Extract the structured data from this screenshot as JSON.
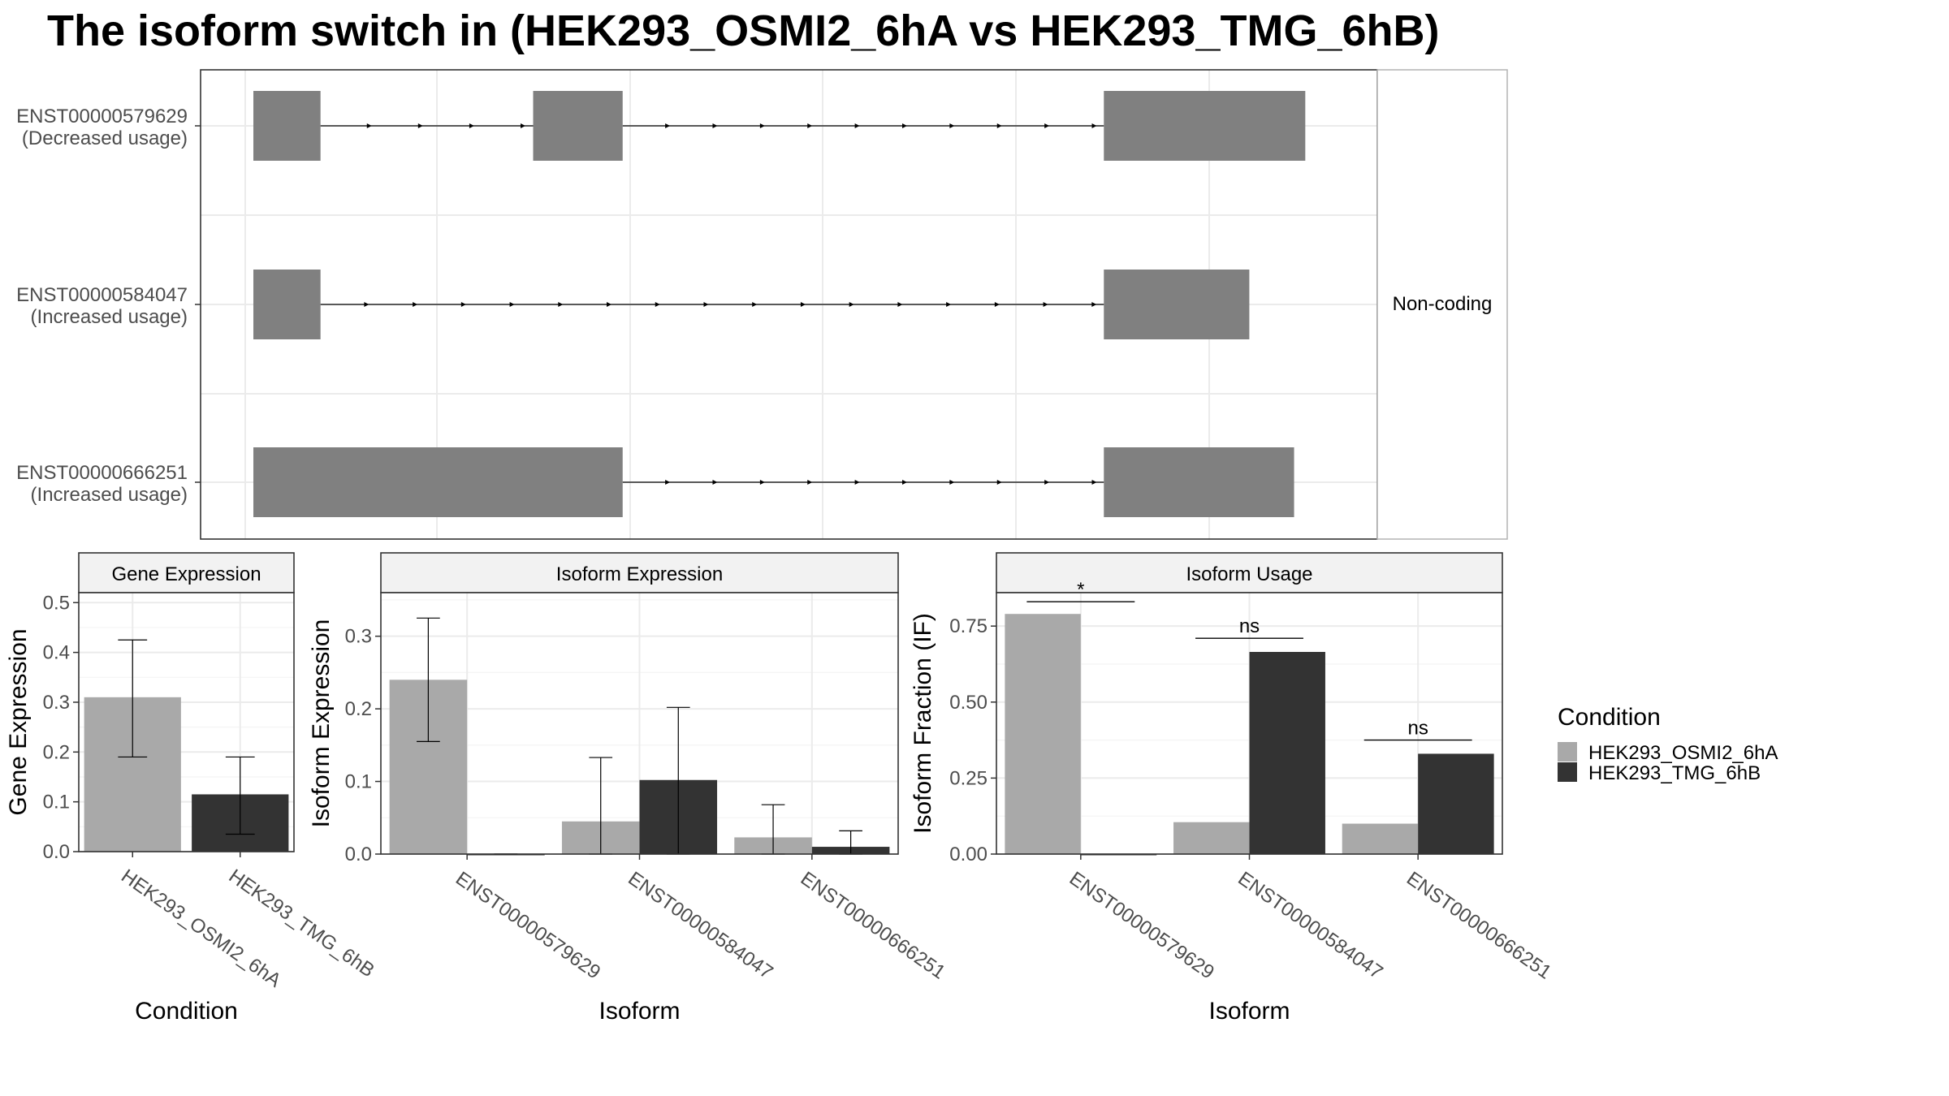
{
  "title": "The isoform switch in  (HEK293_OSMI2_6hA vs HEK293_TMG_6hB)",
  "colors": {
    "condA": "#a9a9a9",
    "condB": "#333333",
    "exon": "#808080"
  },
  "chart_data": [
    {
      "type": "transcript_structure",
      "facet_label": "Non-coding",
      "transcripts": [
        {
          "id": "ENST00000579629",
          "label": "(Decreased usage)",
          "exons": [
            [
              0.0,
              0.06
            ],
            [
              0.25,
              0.33
            ],
            [
              0.76,
              0.94
            ]
          ]
        },
        {
          "id": "ENST00000584047",
          "label": "(Increased usage)",
          "exons": [
            [
              0.0,
              0.06
            ],
            [
              0.76,
              0.89
            ]
          ]
        },
        {
          "id": "ENST00000666251",
          "label": "(Increased usage)",
          "exons": [
            [
              0.0,
              0.33
            ],
            [
              0.76,
              0.93
            ]
          ]
        }
      ]
    },
    {
      "type": "bar",
      "panel_title": "Gene Expression",
      "xlabel": "Condition",
      "ylabel": "Gene Expression",
      "ylim": [
        0,
        0.52
      ],
      "yticks": [
        "0.0",
        "0.1",
        "0.2",
        "0.3",
        "0.4",
        "0.5"
      ],
      "categories": [
        "HEK293_OSMI2_6hA",
        "HEK293_TMG_6hB"
      ],
      "values": [
        0.31,
        0.115
      ],
      "error_low": [
        0.19,
        0.035
      ],
      "error_high": [
        0.425,
        0.19
      ]
    },
    {
      "type": "bar",
      "panel_title": "Isoform Expression",
      "xlabel": "Isoform",
      "ylabel": "Isoform Expression",
      "ylim": [
        0,
        0.36
      ],
      "yticks": [
        "0.0",
        "0.1",
        "0.2",
        "0.3"
      ],
      "categories": [
        "ENST00000579629",
        "ENST00000584047",
        "ENST00000666251"
      ],
      "series": [
        {
          "values": [
            0.24,
            0.045,
            0.023
          ],
          "error_low": [
            0.155,
            0.0,
            0.0
          ],
          "error_high": [
            0.325,
            0.133,
            0.068
          ]
        },
        {
          "values": [
            0.0,
            0.102,
            0.01
          ],
          "error_low": [
            0.0,
            0.0,
            0.0
          ],
          "error_high": [
            0.0,
            0.202,
            0.032
          ]
        }
      ]
    },
    {
      "type": "bar",
      "panel_title": "Isoform Usage",
      "xlabel": "Isoform",
      "ylabel": "Isoform Fraction (IF)",
      "ylim": [
        0,
        0.86
      ],
      "yticks": [
        "0.00",
        "0.25",
        "0.50",
        "0.75"
      ],
      "categories": [
        "ENST00000579629",
        "ENST00000584047",
        "ENST00000666251"
      ],
      "series": [
        {
          "values": [
            0.79,
            0.105,
            0.1
          ]
        },
        {
          "values": [
            0.0,
            0.665,
            0.33
          ]
        }
      ],
      "significance": [
        "*",
        "ns",
        "ns"
      ],
      "significance_y": [
        0.83,
        0.71,
        0.375
      ]
    }
  ],
  "legend": {
    "title": "Condition",
    "items": [
      "HEK293_OSMI2_6hA",
      "HEK293_TMG_6hB"
    ]
  }
}
